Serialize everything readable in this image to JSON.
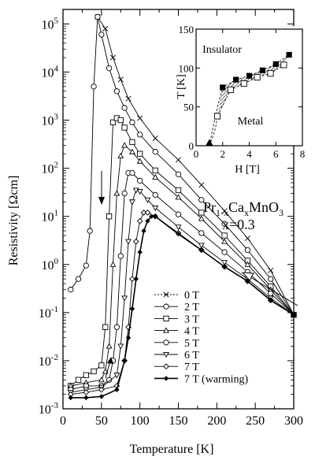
{
  "chart_data": {
    "type": "line",
    "title": "",
    "xlabel": "Temperature [K]",
    "ylabel": "Resistivity [Ωcm]",
    "xlim": [
      0,
      300
    ],
    "ylim": [
      0.001,
      200000
    ],
    "yscale": "log",
    "xticks": [
      0,
      50,
      100,
      150,
      200,
      250,
      300
    ],
    "yticks": [
      {
        "value": 0.001,
        "base": "10",
        "exp": "-3"
      },
      {
        "value": 0.01,
        "base": "10",
        "exp": "-2"
      },
      {
        "value": 0.1,
        "base": "10",
        "exp": "-1"
      },
      {
        "value": 1,
        "base": "10",
        "exp": "0"
      },
      {
        "value": 10,
        "base": "10",
        "exp": "1"
      },
      {
        "value": 100,
        "base": "10",
        "exp": "2"
      },
      {
        "value": 1000,
        "base": "10",
        "exp": "3"
      },
      {
        "value": 10000,
        "base": "10",
        "exp": "4"
      },
      {
        "value": 100000,
        "base": "10",
        "exp": "5"
      }
    ],
    "compound": {
      "base": "Pr",
      "sub1": "1-x",
      "mid1": "Ca",
      "sub2": "x",
      "mid2": "MnO",
      "sub3": "3"
    },
    "composition": "x=0.3",
    "legend_position": "bottom-center",
    "series": [
      {
        "name": "0 T",
        "marker": "x",
        "x": [
          45,
          55,
          65,
          75,
          85,
          100,
          120,
          150,
          180,
          210,
          240,
          270,
          300
        ],
        "y": [
          140000,
          80000,
          20000,
          7000,
          2800,
          1100,
          420,
          150,
          45,
          13,
          3.5,
          0.75,
          0.09
        ]
      },
      {
        "name": "2 T",
        "marker": "circle",
        "x": [
          10,
          20,
          30,
          35,
          40,
          45,
          50,
          60,
          70,
          80,
          90,
          100,
          120,
          150,
          180,
          210,
          240,
          270,
          300
        ],
        "y": [
          0.3,
          0.5,
          0.95,
          5,
          5000,
          140000,
          60000,
          12000,
          4000,
          1800,
          900,
          500,
          220,
          75,
          22,
          7,
          2,
          0.5,
          0.09
        ]
      },
      {
        "name": "3 T",
        "marker": "square",
        "x": [
          10,
          20,
          30,
          40,
          50,
          55,
          60,
          65,
          70,
          75,
          80,
          90,
          100,
          120,
          150,
          180,
          210,
          240,
          270,
          300
        ],
        "y": [
          0.003,
          0.004,
          0.005,
          0.006,
          0.008,
          0.05,
          10,
          900,
          1100,
          1000,
          700,
          350,
          200,
          90,
          35,
          12,
          4,
          1.2,
          0.35,
          0.09
        ]
      },
      {
        "name": "4 T",
        "marker": "triangle",
        "x": [
          10,
          30,
          50,
          55,
          60,
          65,
          70,
          75,
          80,
          90,
          100,
          120,
          150,
          180,
          210,
          240,
          270,
          300
        ],
        "y": [
          0.003,
          0.0035,
          0.004,
          0.006,
          0.02,
          1,
          30,
          180,
          300,
          220,
          140,
          65,
          25,
          9,
          3,
          1,
          0.3,
          0.09
        ]
      },
      {
        "name": "5 T",
        "marker": "circle",
        "x": [
          10,
          30,
          50,
          60,
          65,
          70,
          75,
          80,
          85,
          90,
          100,
          120,
          150,
          180,
          210,
          240,
          270,
          300
        ],
        "y": [
          0.0025,
          0.003,
          0.003,
          0.004,
          0.01,
          0.05,
          1.5,
          30,
          80,
          80,
          55,
          28,
          11,
          4.5,
          1.8,
          0.7,
          0.25,
          0.09
        ]
      },
      {
        "name": "6 T",
        "marker": "triangle-down",
        "x": [
          10,
          30,
          50,
          70,
          75,
          80,
          85,
          90,
          95,
          100,
          110,
          120,
          150,
          180,
          210,
          240,
          270,
          300
        ],
        "y": [
          0.0022,
          0.0025,
          0.0028,
          0.005,
          0.02,
          0.2,
          3,
          20,
          35,
          33,
          22,
          15,
          6,
          2.5,
          1.1,
          0.5,
          0.2,
          0.09
        ]
      },
      {
        "name": "7 T",
        "marker": "diamond",
        "x": [
          10,
          30,
          50,
          70,
          80,
          85,
          90,
          95,
          100,
          105,
          110,
          120,
          150,
          180,
          210,
          240,
          270,
          300
        ],
        "y": [
          0.002,
          0.0022,
          0.0025,
          0.003,
          0.01,
          0.05,
          0.5,
          3,
          8,
          12,
          12,
          10,
          4.5,
          2,
          0.9,
          0.45,
          0.18,
          0.09
        ]
      },
      {
        "name": "7 T (warming)",
        "marker": "filled-diamond",
        "x": [
          10,
          30,
          50,
          70,
          80,
          85,
          90,
          95,
          100,
          105,
          110,
          115,
          120,
          150,
          180,
          210,
          240,
          270,
          300
        ],
        "y": [
          0.0017,
          0.0017,
          0.0018,
          0.0025,
          0.01,
          0.03,
          0.12,
          0.5,
          1.8,
          5,
          8,
          10,
          10,
          4.3,
          2,
          0.9,
          0.45,
          0.18,
          0.09
        ]
      }
    ]
  },
  "inset": {
    "type": "scatter",
    "xlabel": "H [T]",
    "ylabel": "T [K]",
    "xlim": [
      0,
      8
    ],
    "ylim": [
      0,
      150
    ],
    "xticks": [
      0,
      2,
      4,
      6,
      8
    ],
    "yticks": [
      0,
      50,
      100,
      150
    ],
    "region_upper": "Insulator",
    "region_lower": "Metal",
    "filled_squares": [
      [
        2,
        75
      ],
      [
        3,
        85
      ],
      [
        4,
        90
      ],
      [
        5,
        97
      ],
      [
        6,
        105
      ],
      [
        7,
        117
      ]
    ],
    "open_squares": [
      [
        1.6,
        38
      ],
      [
        2.6,
        72
      ],
      [
        3.6,
        80
      ],
      [
        4.6,
        88
      ],
      [
        5.6,
        93
      ],
      [
        6.6,
        104
      ]
    ],
    "triangle": [
      [
        1,
        0
      ]
    ]
  }
}
